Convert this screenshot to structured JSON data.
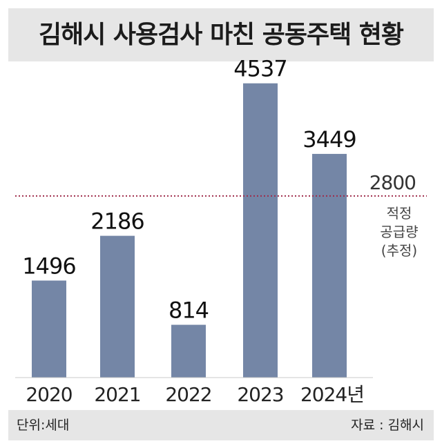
{
  "chart_data": {
    "type": "bar",
    "title": "김해시 사용검사 마친 공동주택 현황",
    "categories": [
      "2020",
      "2021",
      "2022",
      "2023",
      "2024년"
    ],
    "values": [
      1496,
      2186,
      814,
      4537,
      3449
    ],
    "ylim": [
      0,
      4800
    ],
    "grid": false,
    "bar_color": "#7486a6",
    "reference_line": {
      "value": 2800,
      "label_value": "2800",
      "label_lines": [
        "적정",
        "공급량",
        "(추정)"
      ],
      "color": "#9e2b4a",
      "style": "dotted"
    },
    "unit_note": "단위:세대",
    "source": "자료 : 김해시"
  }
}
